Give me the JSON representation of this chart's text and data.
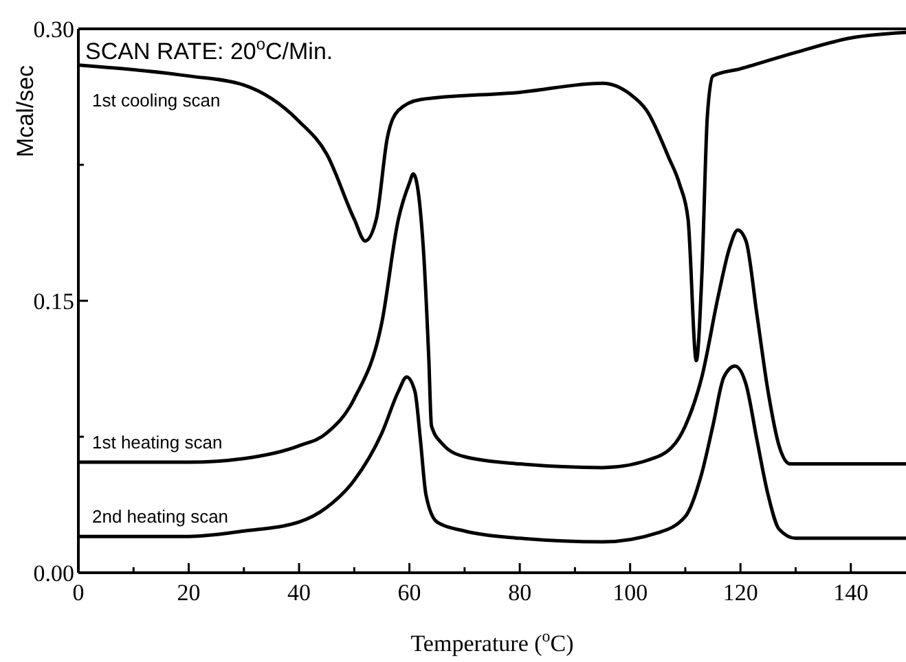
{
  "chart_data": {
    "type": "line",
    "xlabel": "Temperature ($^{o}$C)",
    "ylabel": "Mcal/sec",
    "annotations": [
      "SCAN   RATE: 20$^{o}$C/Min."
    ],
    "xlim": [
      0,
      150
    ],
    "ylim": [
      0,
      0.3
    ],
    "xticks": [
      0,
      {
        "value": 10,
        "label": null
      },
      20,
      {
        "value": 30,
        "label": null
      },
      40,
      {
        "value": 50,
        "label": null
      },
      60,
      {
        "value": 70,
        "label": null
      },
      80,
      {
        "value": 90,
        "label": null
      },
      100,
      {
        "value": 110,
        "label": null
      },
      120,
      {
        "value": 130,
        "label": null
      },
      140
    ],
    "yticks": [
      {
        "value": 0,
        "label": "0.00"
      },
      {
        "value": 0.075,
        "label": null
      },
      0.15,
      {
        "value": 0.225,
        "label": null
      },
      {
        "value": 0.3,
        "label": "0.30"
      }
    ],
    "marker": "none",
    "line_style": "solid",
    "series": [
      {
        "name": "1st cooling scan",
        "color": "#000000",
        "x": [
          0,
          20,
          30,
          40,
          45,
          50,
          52,
          54,
          56,
          58,
          62,
          80,
          95,
          100,
          103,
          107,
          109,
          110.5,
          112,
          113,
          114,
          115,
          120,
          130,
          140,
          150
        ],
        "values": [
          0.28,
          0.274,
          0.269,
          0.249,
          0.231,
          0.195,
          0.183,
          0.195,
          0.24,
          0.255,
          0.261,
          0.265,
          0.27,
          0.264,
          0.255,
          0.229,
          0.214,
          0.195,
          0.117,
          0.164,
          0.252,
          0.274,
          0.278,
          0.287,
          0.295,
          0.298
        ]
      },
      {
        "name": "1st heating scan",
        "color": "#000000",
        "x": [
          0,
          20,
          30,
          40,
          45,
          50,
          55,
          58,
          60,
          60.7,
          62.5,
          63.5,
          64,
          66,
          70,
          80,
          95,
          105,
          110,
          113,
          116,
          118,
          119.5,
          121,
          123,
          125,
          127,
          129,
          150
        ],
        "values": [
          0.061,
          0.061,
          0.063,
          0.07,
          0.077,
          0.096,
          0.138,
          0.195,
          0.215,
          0.22,
          0.18,
          0.119,
          0.081,
          0.071,
          0.064,
          0.06,
          0.058,
          0.064,
          0.081,
          0.108,
          0.153,
          0.179,
          0.189,
          0.183,
          0.142,
          0.1,
          0.07,
          0.06,
          0.06
        ]
      },
      {
        "name": "2nd heating scan",
        "color": "#000000",
        "x": [
          0,
          20,
          30,
          40,
          45,
          50,
          55,
          58,
          59.5,
          61,
          62,
          63,
          65,
          70,
          80,
          95,
          105,
          110,
          113,
          115,
          117,
          119,
          121,
          123,
          125,
          127,
          130,
          150
        ],
        "values": [
          0.02,
          0.02,
          0.023,
          0.028,
          0.036,
          0.051,
          0.077,
          0.1,
          0.108,
          0.1,
          0.073,
          0.043,
          0.028,
          0.023,
          0.019,
          0.017,
          0.022,
          0.031,
          0.055,
          0.081,
          0.108,
          0.114,
          0.104,
          0.073,
          0.043,
          0.024,
          0.019,
          0.019
        ]
      }
    ]
  }
}
